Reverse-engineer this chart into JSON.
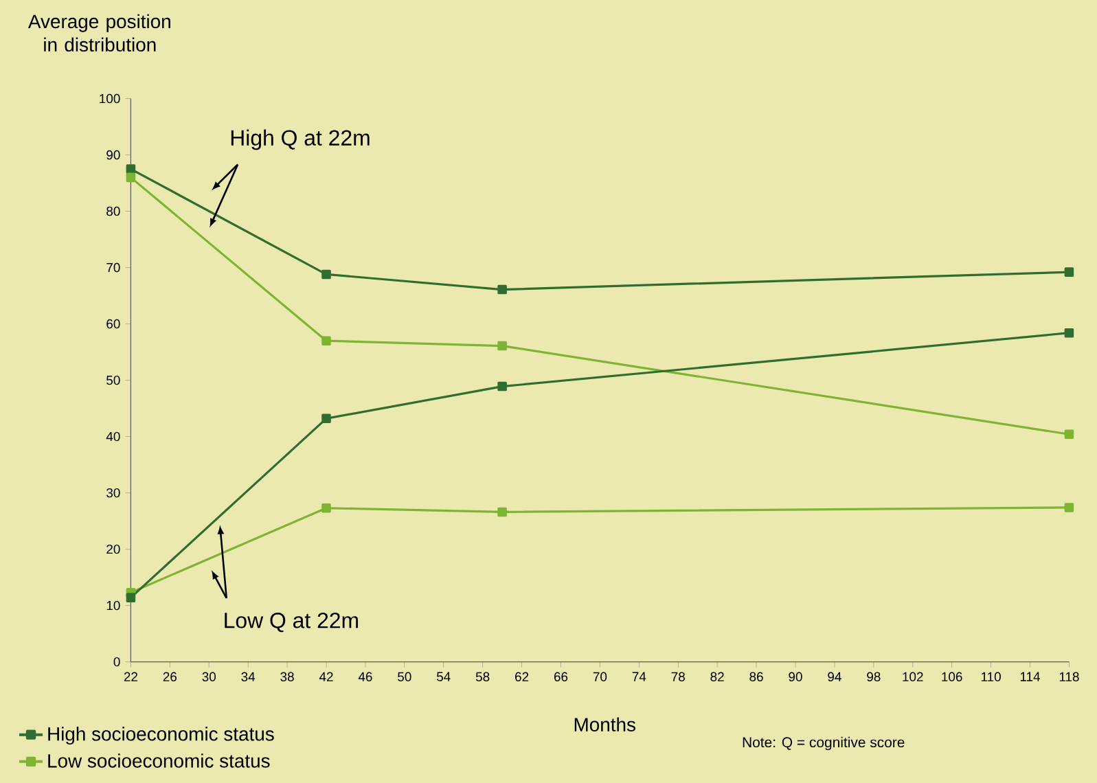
{
  "chart_data": {
    "type": "line",
    "ylabel": "Average position in distribution",
    "xlabel": "Months",
    "x": [
      22,
      42,
      60,
      118
    ],
    "series": [
      {
        "name": "High socioeconomic status",
        "color": "#2f6e2f",
        "values": [
          87.5,
          68.8,
          66.1,
          69.2
        ]
      },
      {
        "name": "Low socioeconomic status",
        "color": "#7db533",
        "values": [
          86.0,
          57.0,
          56.1,
          40.4
        ]
      },
      {
        "color": "#2f6e2f",
        "values": [
          11.4,
          43.2,
          48.9,
          58.4
        ]
      },
      {
        "color": "#7db533",
        "values": [
          12.3,
          27.3,
          26.6,
          27.4
        ]
      }
    ],
    "xlim": [
      22,
      118
    ],
    "xticks": [
      22,
      26,
      30,
      34,
      38,
      42,
      46,
      50,
      54,
      58,
      62,
      66,
      70,
      74,
      78,
      82,
      86,
      90,
      94,
      98,
      102,
      106,
      110,
      114,
      118
    ],
    "ylim": [
      0,
      100
    ],
    "yticks": [
      0,
      10,
      20,
      30,
      40,
      50,
      60,
      70,
      80,
      90,
      100
    ],
    "annotations": [
      "High Q at 22m",
      "Low Q at 22m",
      "Note: Q = cognitive score"
    ],
    "marker": "square",
    "line_style": "solid",
    "grid": false,
    "legend": "bottom left"
  }
}
